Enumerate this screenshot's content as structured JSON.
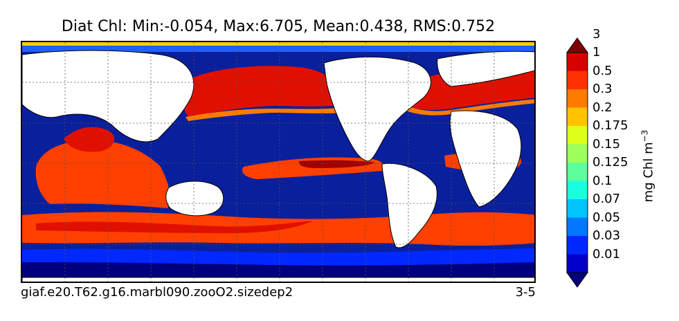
{
  "title": "Diat Chl: Min:-0.054, Max:6.705, Mean:0.438, RMS:0.752",
  "footer": {
    "case_name": "giaf.e20.T62.g16.marbl090.zooO2.sizedep2",
    "season": "3-5"
  },
  "colorbar": {
    "unit_label": "mg Chl m",
    "unit_exponent": "−3",
    "levels": [
      "0.01",
      "0.03",
      "0.05",
      "0.07",
      "0.1",
      "0.125",
      "0.15",
      "0.175",
      "0.2",
      "0.3",
      "0.5",
      "1",
      "3"
    ],
    "colors": [
      "#00007f",
      "#0000c9",
      "#0028ff",
      "#0078ff",
      "#00c4ff",
      "#19ffde",
      "#5cff9b",
      "#9cff5a",
      "#ddff19",
      "#ffc300",
      "#ff7b00",
      "#ff3000",
      "#d60000",
      "#7f0000"
    ]
  },
  "map": {
    "land_color": "#ffffff",
    "grid": "dotted"
  }
}
